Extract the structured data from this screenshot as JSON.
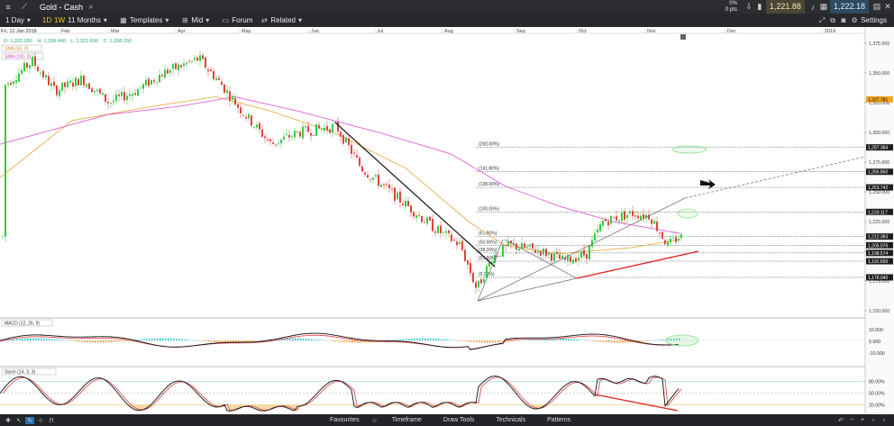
{
  "title_bar": {
    "title": "Gold - Cash",
    "pct": "0%",
    "pts": "0 pts",
    "sell": "1,221.88",
    "buy": "1,222.18",
    "settings": "Settings"
  },
  "toolbar": {
    "interval": "1 Day",
    "tf_1d": "1D",
    "tf_1w": "1W",
    "range": "11 Months",
    "templates": "Templates",
    "price_type": "Mid",
    "forum": "Forum",
    "related": "Related"
  },
  "bottom_bar": {
    "favourites": "Favourites",
    "timeframe": "Timeframe",
    "draw_tools": "Draw Tools",
    "technicals": "Technicals",
    "patterns": "Patterns"
  },
  "chart": {
    "date_label": "Fri, 12 Jan 2018",
    "months": [
      "Feb",
      "Mar",
      "Apr",
      "May",
      "Jun",
      "Jul",
      "Aug",
      "Sep",
      "Oct",
      "Nov",
      "Dec",
      "2019"
    ],
    "ohlc": {
      "o": "O: 1,322.050",
      "h": "H: 1,339.440",
      "l": "L: 1,321.600",
      "c": "C: 1,338.150"
    },
    "ma_legend": [
      "SMA (50, 0)",
      "SMA (100, 0)"
    ],
    "price_axis": [
      "1,375.000",
      "1,350.000",
      "1,325.000",
      "1,300.000",
      "1,275.000",
      "1,250.000",
      "1,225.000",
      "1,200.000",
      "1,175.000",
      "1,150.000"
    ],
    "price_tags": [
      {
        "text": "1,327.781",
        "type": "highlight"
      },
      {
        "text": "1,287.384",
        "type": "dark"
      },
      {
        "text": "1,266.860",
        "type": "dark"
      },
      {
        "text": "1,253.742",
        "type": "dark"
      },
      {
        "text": "1,233.117",
        "type": "dark"
      },
      {
        "text": "1,212.383",
        "type": "dark"
      },
      {
        "text": "1,205.076",
        "type": "dark"
      },
      {
        "text": "1,198.574",
        "type": "dark"
      },
      {
        "text": "1,191.650",
        "type": "dark"
      },
      {
        "text": "1,178.040",
        "type": "dark"
      }
    ],
    "fib_labels": [
      "(200.00%)",
      "(161.80%)",
      "(138.00%)",
      "(100.00%)",
      "(61.80%)",
      "(50.00%)",
      "(38.20%)",
      "(23.60%)",
      "(0.00%)"
    ],
    "macd_label": "MACD (12, 26, 9)",
    "macd_axis": [
      "10.000",
      "0.000",
      "-10.000"
    ],
    "stoch_label": "Stoch (14, 3, 3)",
    "stoch_axis": [
      "80.00%",
      "50.00%",
      "20.00%"
    ],
    "colors": {
      "bull": "#2ecc40",
      "bear": "#e0413a",
      "sma50": "#e8b04a",
      "sma100": "#e060d8",
      "trend": "#e02020",
      "ellipse": "#8ee08e"
    }
  }
}
